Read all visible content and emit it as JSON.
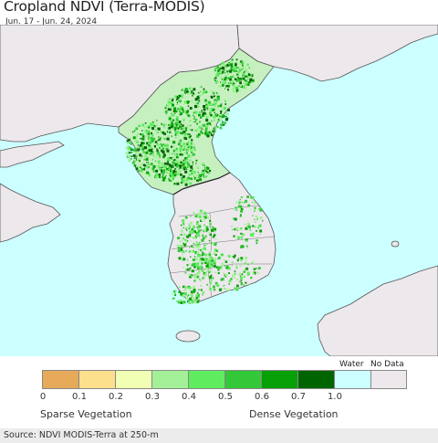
{
  "header": {
    "title": "Cropland NDVI (Terra-MODIS)",
    "date_range": "Jun. 17 - Jun. 24, 2024"
  },
  "map": {
    "region": "Korean Peninsula",
    "colors": {
      "water": "#ccffff",
      "land": "#ece8ec",
      "border": "#555555"
    }
  },
  "legend": {
    "bins": [
      {
        "from": "0",
        "color": "#e6aa5a"
      },
      {
        "from": "0.1",
        "color": "#fde08c"
      },
      {
        "from": "0.2",
        "color": "#f0ffb4"
      },
      {
        "from": "0.3",
        "color": "#a4f098"
      },
      {
        "from": "0.4",
        "color": "#5fed5f"
      },
      {
        "from": "0.5",
        "color": "#32c837"
      },
      {
        "from": "0.6",
        "color": "#06a006"
      },
      {
        "from": "0.7",
        "color": "#006400"
      }
    ],
    "end_label": "1.0",
    "water": {
      "label": "Water",
      "color": "#ccffff"
    },
    "no_data": {
      "label": "No Data",
      "color": "#ece8ec"
    },
    "low_caption": "Sparse Vegetation",
    "high_caption": "Dense Vegetation"
  },
  "footer": {
    "source": "Source: NDVI MODIS-Terra at 250-m"
  }
}
